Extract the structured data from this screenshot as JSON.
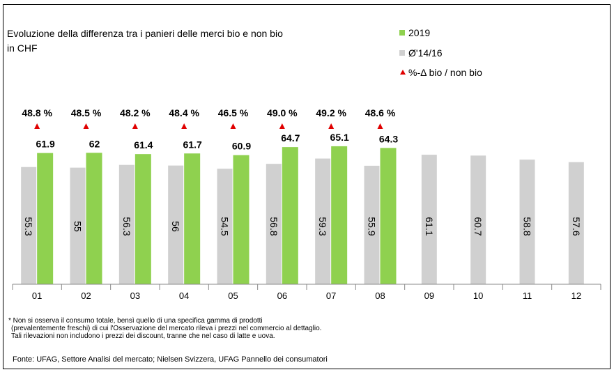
{
  "chart_data": {
    "type": "bar",
    "title_lines": [
      "Evoluzione della differenza tra i panieri delle merci bio e non bio",
      "in CHF"
    ],
    "categories": [
      "01",
      "02",
      "03",
      "04",
      "05",
      "06",
      "07",
      "08",
      "09",
      "10",
      "11",
      "12"
    ],
    "series": [
      {
        "name": "Ø'14/16",
        "color": "#d0d0d0",
        "values": [
          55.3,
          55.0,
          56.3,
          56.0,
          54.5,
          56.8,
          59.3,
          55.9,
          61.1,
          60.7,
          58.8,
          57.6
        ]
      },
      {
        "name": "2019",
        "color": "#8fd14f",
        "values": [
          61.9,
          62.0,
          61.4,
          61.7,
          60.9,
          64.7,
          65.1,
          64.3,
          null,
          null,
          null,
          null
        ]
      },
      {
        "name": "%-Δ bio / non bio",
        "color": "#e00000",
        "values": [
          48.8,
          48.5,
          48.2,
          48.4,
          46.5,
          49.0,
          49.2,
          48.6,
          null,
          null,
          null,
          null
        ],
        "value_labels": [
          "48.8 %",
          "48.5 %",
          "48.2 %",
          "48.4 %",
          "46.5 %",
          "49.0 %",
          "49.2 %",
          "48.6 %",
          null,
          null,
          null,
          null
        ]
      }
    ],
    "ylim": [
      0,
      70
    ],
    "footnote_lines": [
      "* Non si osserva il consumo totale, bensì quello di una specifica gamma di prodotti",
      "(prevalentemente freschi) di cui l'Osservazione del mercato rileva i prezzi nel commercio al dettaglio.",
      "Tali rilevazioni non includono i prezzi dei discount, tranne che nel caso di latte e uova."
    ],
    "source": "Fonte: UFAG, Settore Analisi del mercato; Nielsen Svizzera, UFAG Pannello dei consumatori"
  }
}
